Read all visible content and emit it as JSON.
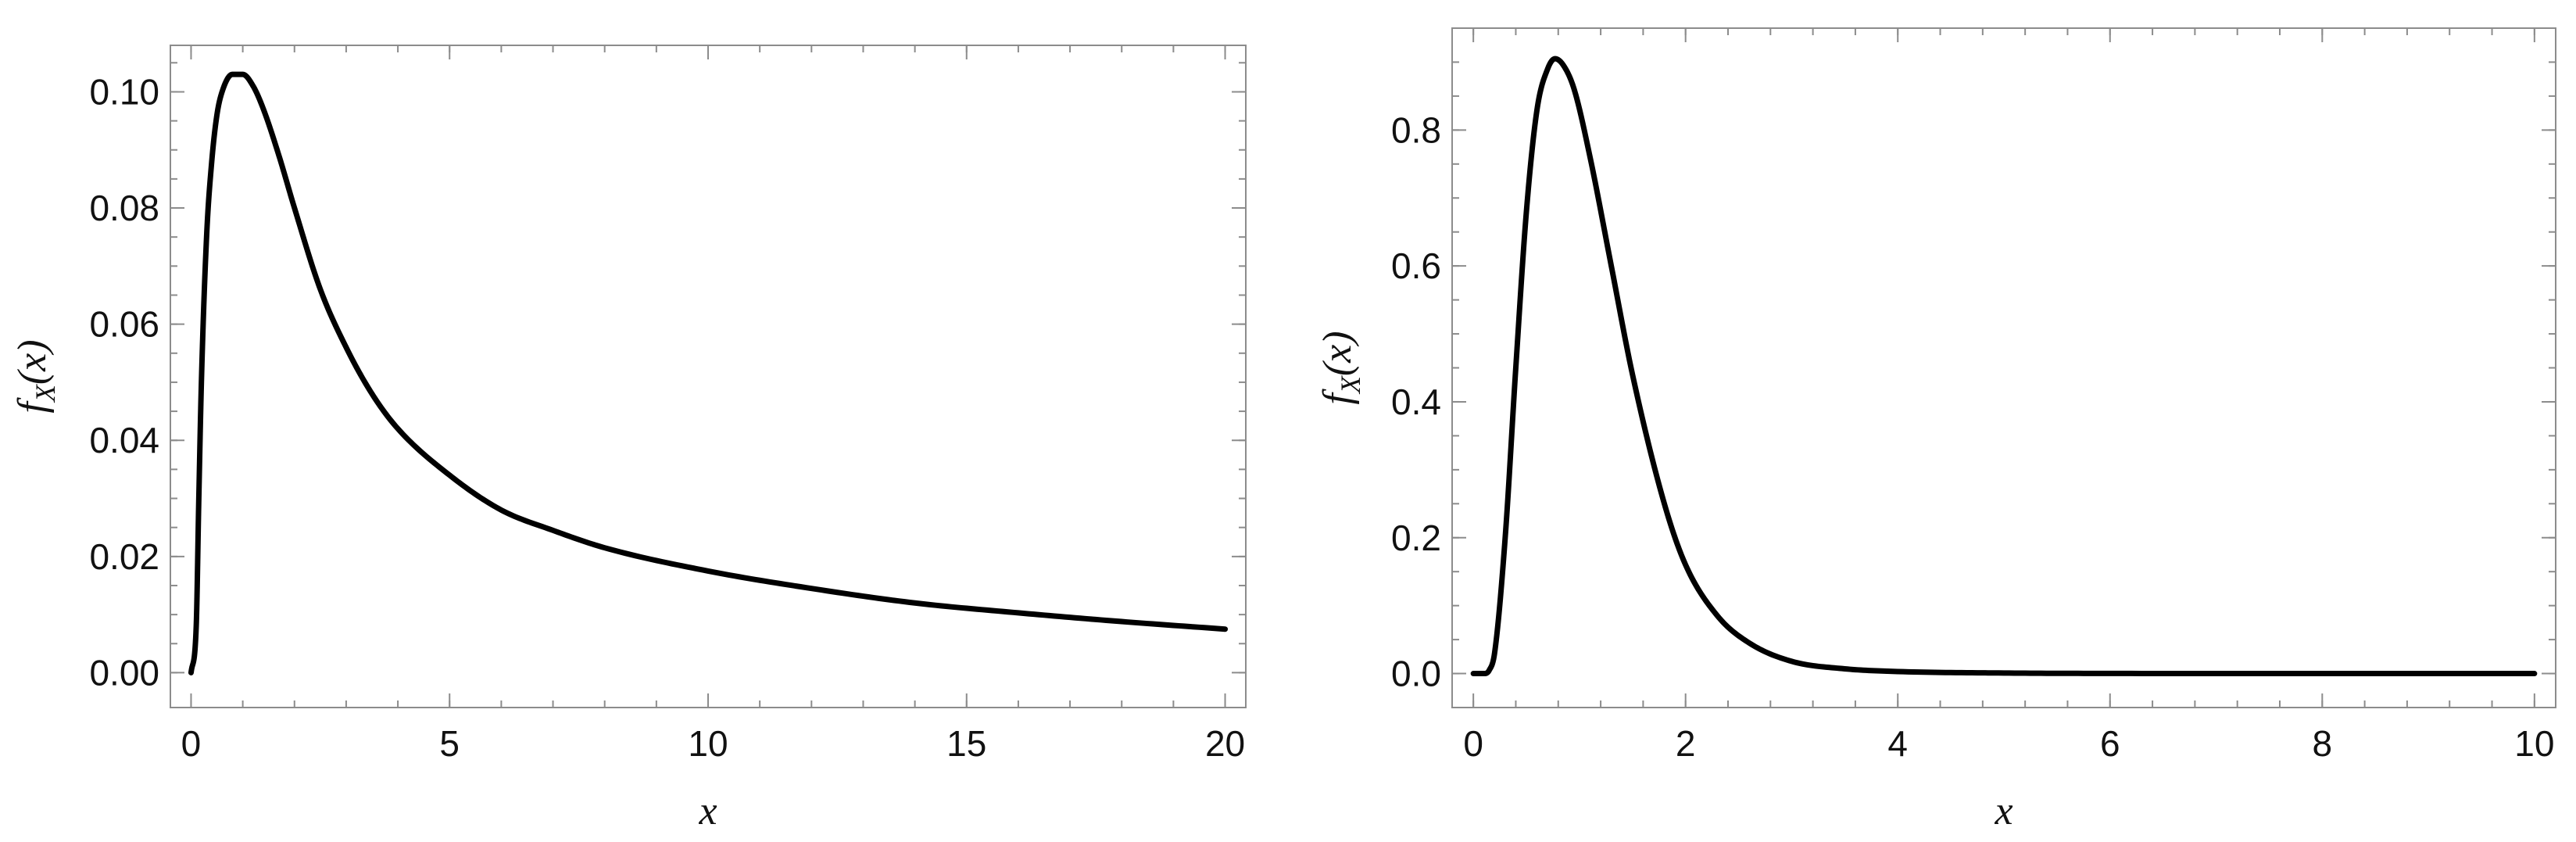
{
  "chart_data": [
    {
      "type": "line",
      "xlabel": "x",
      "ylabel": {
        "base": "f",
        "sub": "X",
        "arg": "(x)"
      },
      "xlim": [
        -0.4,
        20.4
      ],
      "ylim": [
        -0.006,
        0.108
      ],
      "xticks": [
        0,
        5,
        10,
        15,
        20
      ],
      "xtick_labels": [
        "0",
        "5",
        "10",
        "15",
        "20"
      ],
      "yticks": [
        0,
        0.02,
        0.04,
        0.06,
        0.08,
        0.1
      ],
      "ytick_labels": [
        "0.00",
        "0.02",
        "0.04",
        "0.06",
        "0.08",
        "0.10"
      ],
      "grid": false,
      "series": [
        {
          "color": "#000000",
          "x": [
            0,
            0.1,
            0.15,
            0.2,
            0.3,
            0.4,
            0.5,
            0.6,
            0.8,
            1.0,
            1.2,
            1.4,
            1.7,
            2.0,
            2.5,
            3,
            3.5,
            4,
            5,
            6,
            7,
            8,
            10,
            12,
            14,
            16,
            18,
            20
          ],
          "y": [
            0.0,
            0.008,
            0.03,
            0.05,
            0.075,
            0.088,
            0.096,
            0.1,
            0.103,
            0.103,
            0.101,
            0.097,
            0.089,
            0.08,
            0.066,
            0.056,
            0.048,
            0.042,
            0.034,
            0.028,
            0.0245,
            0.0215,
            0.0175,
            0.0145,
            0.012,
            0.0103,
            0.0088,
            0.0075
          ]
        }
      ]
    },
    {
      "type": "line",
      "xlabel": "x",
      "ylabel": {
        "base": "f",
        "sub": "X",
        "arg": "(x)"
      },
      "xlim": [
        -0.2,
        10.2
      ],
      "ylim": [
        -0.05,
        0.95
      ],
      "xticks": [
        0,
        2,
        4,
        6,
        8,
        10
      ],
      "xtick_labels": [
        "0",
        "2",
        "4",
        "6",
        "8",
        "10"
      ],
      "yticks": [
        0,
        0.2,
        0.4,
        0.6,
        0.8
      ],
      "ytick_labels": [
        "0.0",
        "0.2",
        "0.4",
        "0.6",
        "0.8"
      ],
      "grid": false,
      "series": [
        {
          "color": "#000000",
          "x": [
            0,
            0.1,
            0.15,
            0.2,
            0.3,
            0.4,
            0.5,
            0.6,
            0.7,
            0.77,
            0.85,
            0.95,
            1.1,
            1.3,
            1.5,
            1.8,
            2.0,
            2.3,
            2.6,
            3.0,
            3.5,
            4,
            5,
            6,
            8,
            10
          ],
          "y": [
            0.0,
            0.0,
            0.005,
            0.03,
            0.2,
            0.45,
            0.68,
            0.83,
            0.89,
            0.905,
            0.895,
            0.86,
            0.76,
            0.6,
            0.44,
            0.25,
            0.16,
            0.085,
            0.045,
            0.018,
            0.007,
            0.003,
            0.0008,
            0.0002,
            0.0,
            0.0
          ]
        }
      ]
    }
  ]
}
